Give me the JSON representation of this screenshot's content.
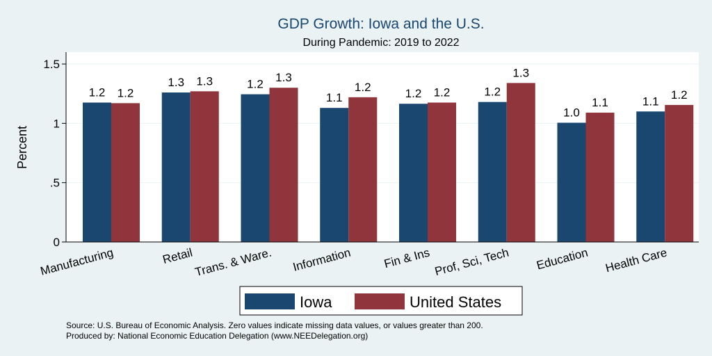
{
  "chart_data": {
    "type": "bar",
    "title": "GDP Growth: Iowa and the U.S.",
    "subtitle": "During Pandemic: 2019 to 2022",
    "ylabel": "Percent",
    "xlabel": "",
    "ylim": [
      0,
      1.6
    ],
    "yticks": [
      0,
      0.5,
      1,
      1.5
    ],
    "ytick_labels": [
      "0",
      ".5",
      "1",
      "1.5"
    ],
    "grid": true,
    "legend_position": "bottom",
    "categories": [
      "Manufacturing",
      "Retail",
      "Trans. & Ware.",
      "Information",
      "Fin & Ins",
      "Prof, Sci, Tech",
      "Education",
      "Health Care"
    ],
    "series": [
      {
        "name": "Iowa",
        "color": "#1a476f",
        "values": [
          1.175,
          1.26,
          1.245,
          1.13,
          1.165,
          1.18,
          1.005,
          1.1
        ],
        "labels": [
          "1.2",
          "1.3",
          "1.2",
          "1.1",
          "1.2",
          "1.2",
          "1.0",
          "1.1"
        ]
      },
      {
        "name": "United States",
        "color": "#90353b",
        "values": [
          1.17,
          1.27,
          1.3,
          1.22,
          1.175,
          1.34,
          1.09,
          1.155
        ],
        "labels": [
          "1.2",
          "1.3",
          "1.3",
          "1.2",
          "1.2",
          "1.3",
          "1.1",
          "1.2"
        ]
      }
    ]
  },
  "notes": {
    "source": "Source: U.S. Bureau of Economic Analysis. Zero values indicate missing data values, or values greater than 200.",
    "produced_by": "Produced by: National Economic Education Delegation (www.NEEDelegation.org)"
  },
  "colors": {
    "background": "#eaf2f3",
    "plot_background": "#ffffff",
    "grid": "#eaf2f3"
  }
}
